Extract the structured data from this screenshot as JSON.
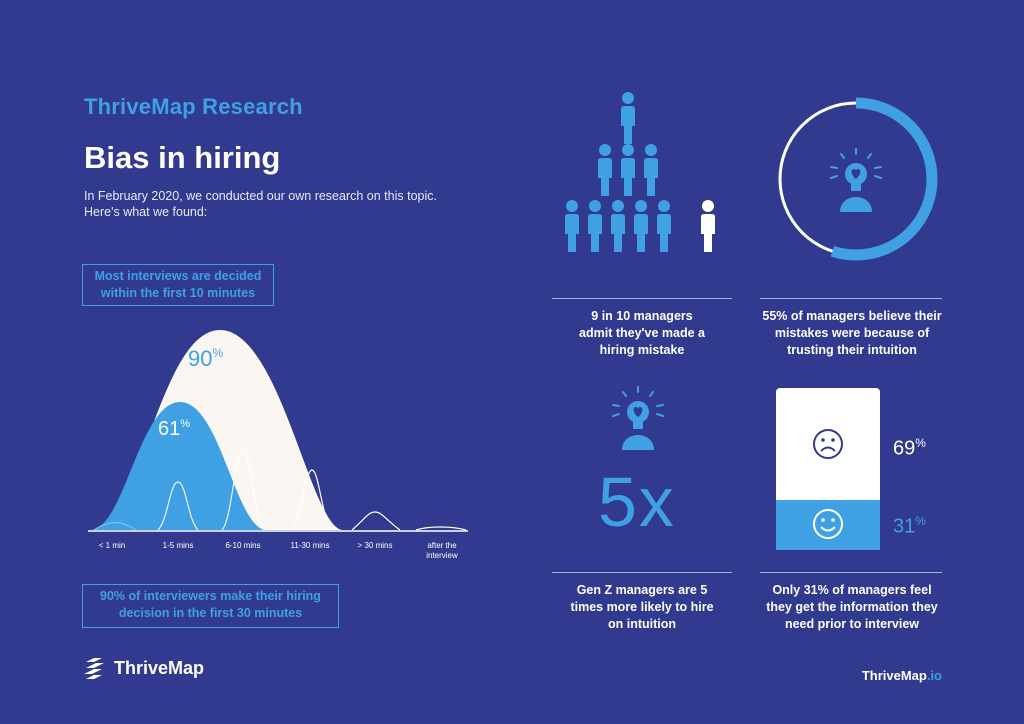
{
  "header": {
    "subtitle": "ThriveMap Research",
    "title": "Bias in hiring",
    "intro": "In February 2020, we conducted our own research on this topic. Here's what we found:"
  },
  "left": {
    "box_top": "Most interviews are decided within the first 10 minutes",
    "box_bottom": "90% of interviewers make their hiring decision in the first 30 minutes"
  },
  "chart_data": {
    "type": "area",
    "categories": [
      "< 1 min",
      "1-5 mins",
      "6-10 mins",
      "11-30 mins",
      "> 30 mins",
      "after the interview"
    ],
    "annotations": [
      {
        "label": "90",
        "unit": "%",
        "by": "11-30 mins"
      },
      {
        "label": "61",
        "unit": "%",
        "by": "6-10 mins"
      }
    ]
  },
  "stats": {
    "stat1": "9 in 10 managers admit they've made a hiring mistake",
    "stat2": "55% of managers believe their mistakes were because of trusting their intuition",
    "stat3": "Gen Z managers are 5 times more likely to hire on intuition",
    "stat4": "Only 31% of managers feel they get the information they need prior to interview",
    "multiplier": "5x",
    "pct_sad": "69",
    "pct_happy": "31",
    "pct_symbol": "%",
    "ring_fraction": 0.55,
    "happy_fraction": 0.31,
    "people_colored": 9,
    "people_total": 10
  },
  "footer": {
    "brand": "ThriveMap",
    "url_main": "ThriveMap",
    "url_tld": ".io"
  },
  "colors": {
    "background": "#323a8f",
    "accent": "#3fa0e4",
    "white": "#ffffff"
  },
  "icons": [
    "person-icon",
    "head-heart-icon",
    "sad-face-icon",
    "happy-face-icon",
    "thrivemap-logo-icon"
  ]
}
